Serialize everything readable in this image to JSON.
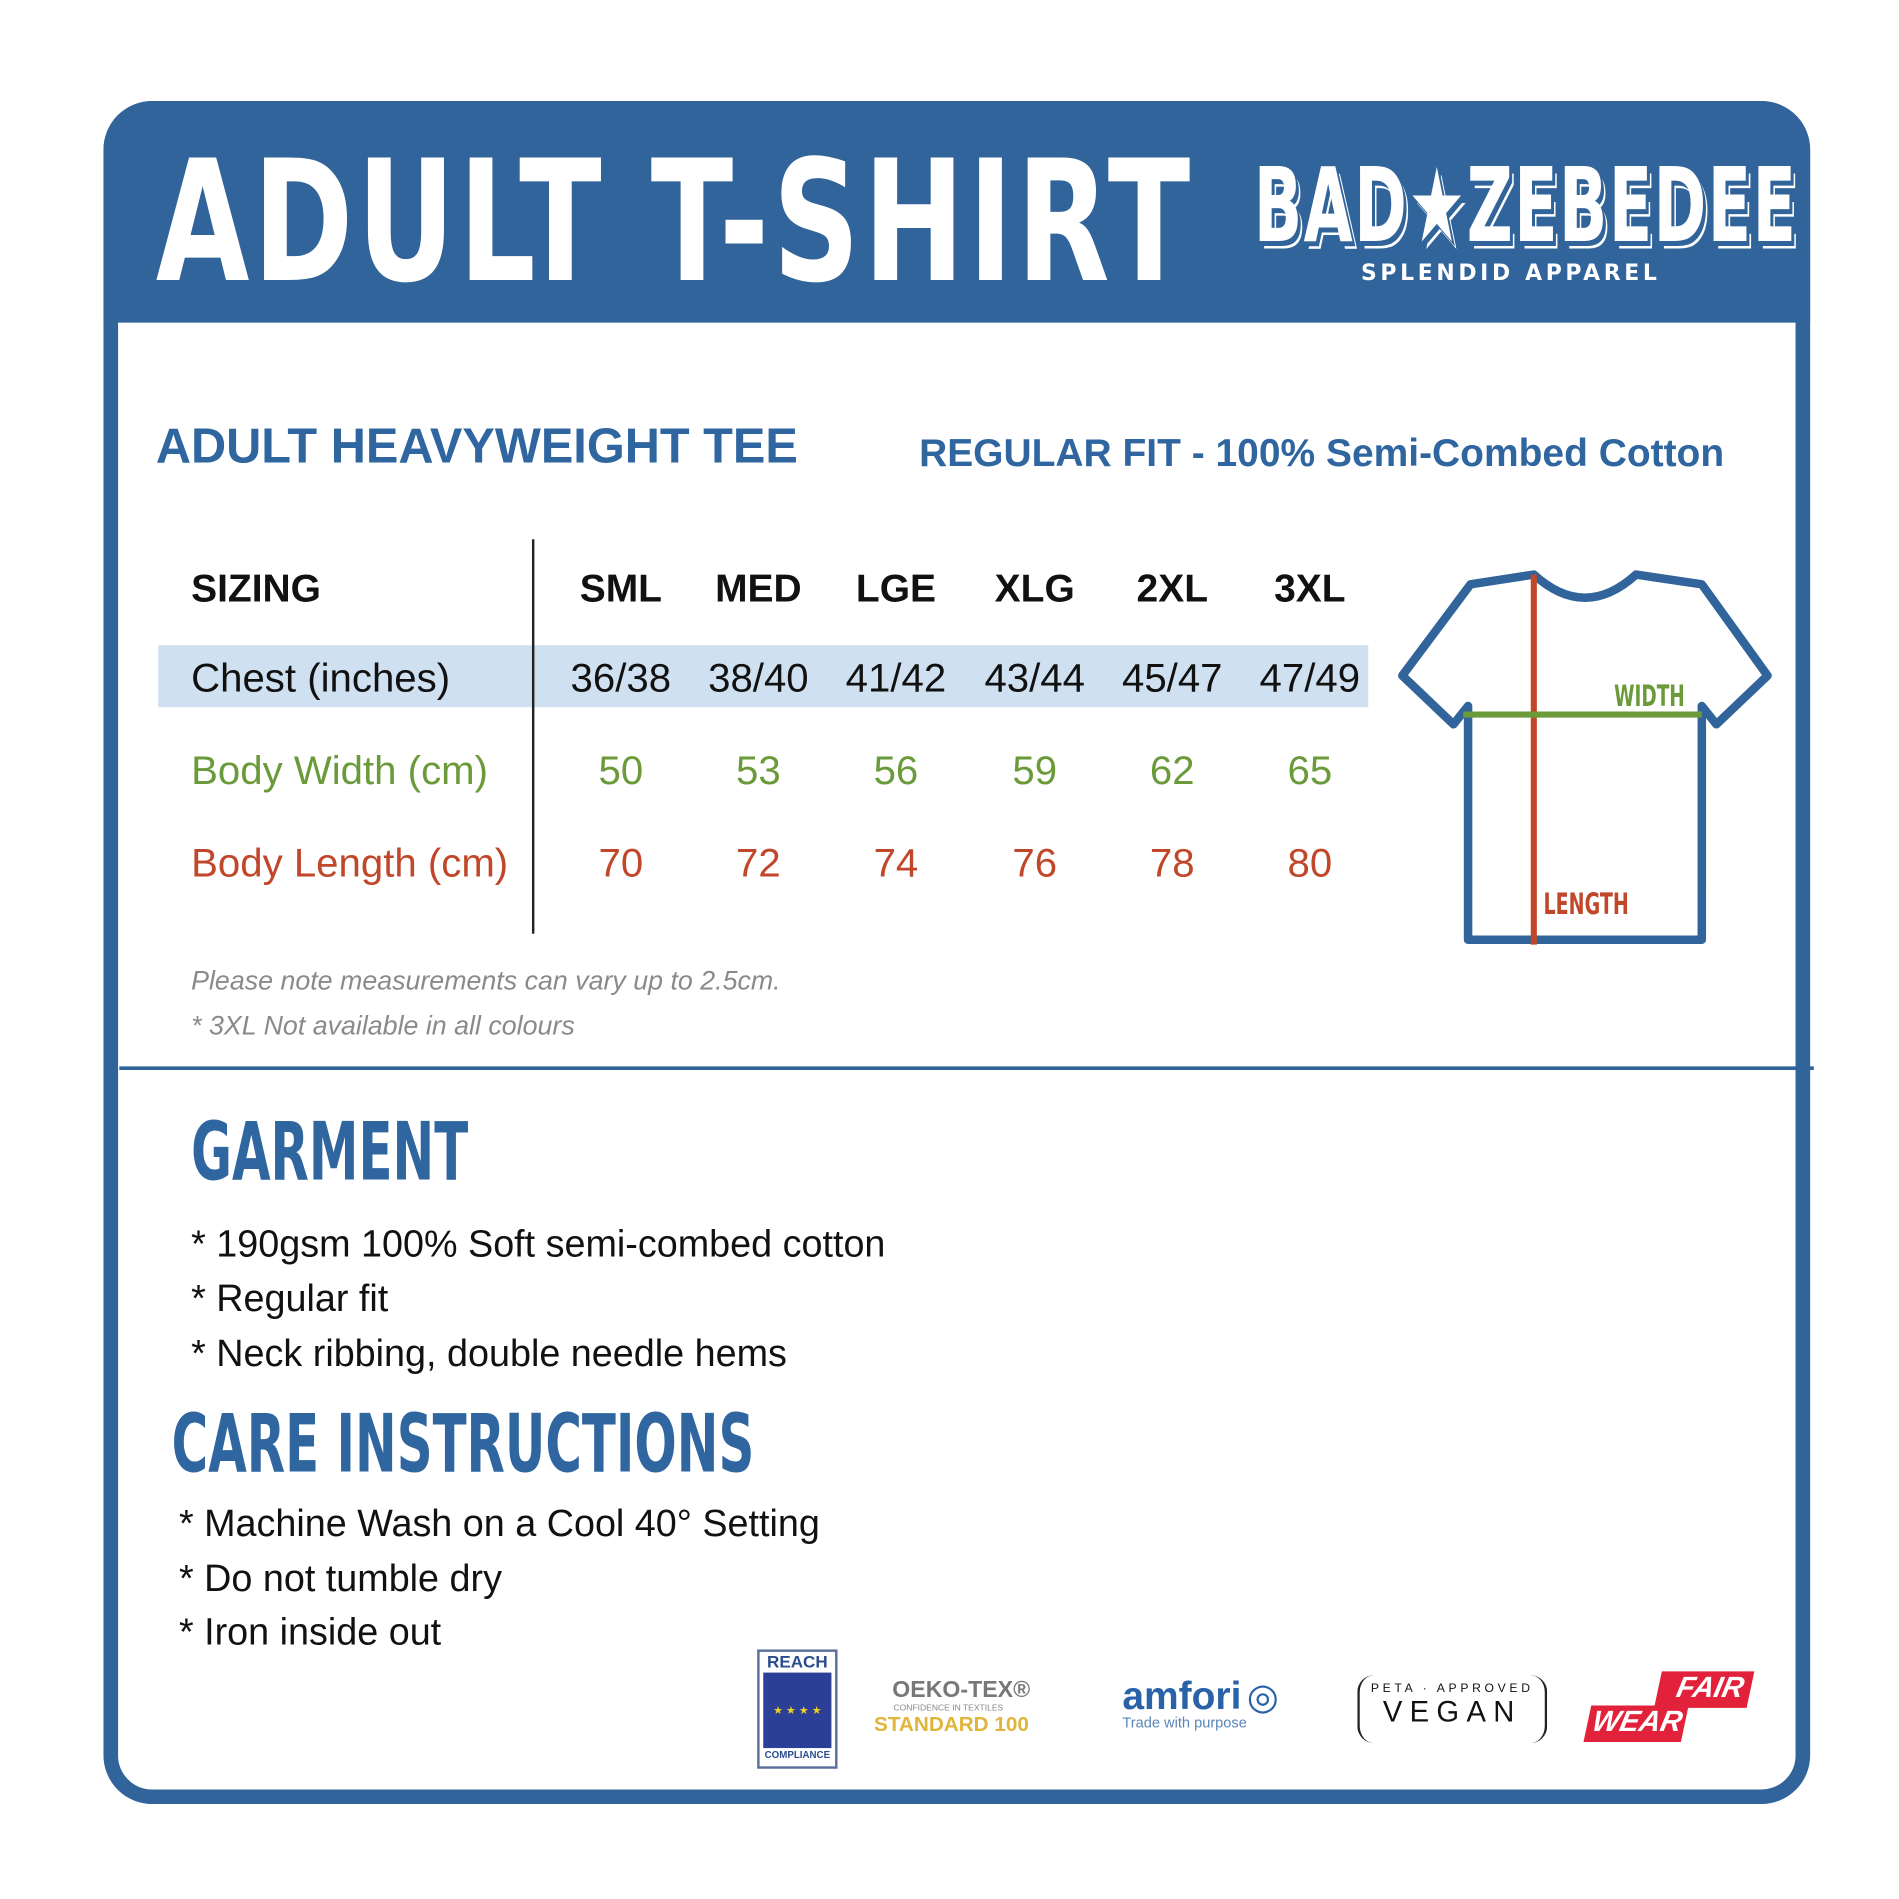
{
  "header": {
    "title": "ADULT T-SHIRT",
    "brand": {
      "name": "BAD★ZEBEDEE",
      "tagline": "SPLENDID APPAREL"
    },
    "color": "#31649a"
  },
  "product": {
    "name": "ADULT HEAVYWEIGHT TEE",
    "fit": "REGULAR FIT - 100% Semi-Combed Cotton"
  },
  "sizing": {
    "label": "SIZING",
    "sizes": [
      "SML",
      "MED",
      "LGE",
      "XLG",
      "2XL",
      "3XL"
    ],
    "rows": [
      {
        "label": "Chest (inches)",
        "values": [
          "36/38",
          "38/40",
          "41/42",
          "43/44",
          "45/47",
          "47/49"
        ],
        "color": "#111111",
        "highlight": "#cfe0f0"
      },
      {
        "label": "Body Width (cm)",
        "values": [
          "50",
          "53",
          "56",
          "59",
          "62",
          "65"
        ],
        "color": "#6a9a3a"
      },
      {
        "label": "Body Length (cm)",
        "values": [
          "70",
          "72",
          "74",
          "76",
          "78",
          "80"
        ],
        "color": "#c0472a"
      }
    ],
    "notes": [
      "Please note measurements can vary up to 2.5cm.",
      "* 3XL Not available in all colours"
    ]
  },
  "diagram": {
    "width_label": "WIDTH",
    "length_label": "LENGTH"
  },
  "garment": {
    "heading": "GARMENT",
    "items": [
      "* 190gsm 100% Soft semi-combed cotton",
      "* Regular fit",
      "* Neck ribbing, double needle hems"
    ]
  },
  "care": {
    "heading": "CARE INSTRUCTIONS",
    "items": [
      "* Machine Wash on a Cool 40° Setting",
      "* Do not tumble dry",
      "* Iron inside out"
    ]
  },
  "certifications": [
    {
      "name": "REACH",
      "sub": "COMPLIANCE"
    },
    {
      "name": "OEKO-TEX®",
      "sub": "CONFIDENCE IN TEXTILES",
      "extra": "STANDARD 100"
    },
    {
      "name": "amfori",
      "sub": "Trade with purpose"
    },
    {
      "name": "VEGAN",
      "sub": "PETA · APPROVED"
    },
    {
      "name": "FAIR",
      "sub": "WEAR"
    }
  ]
}
